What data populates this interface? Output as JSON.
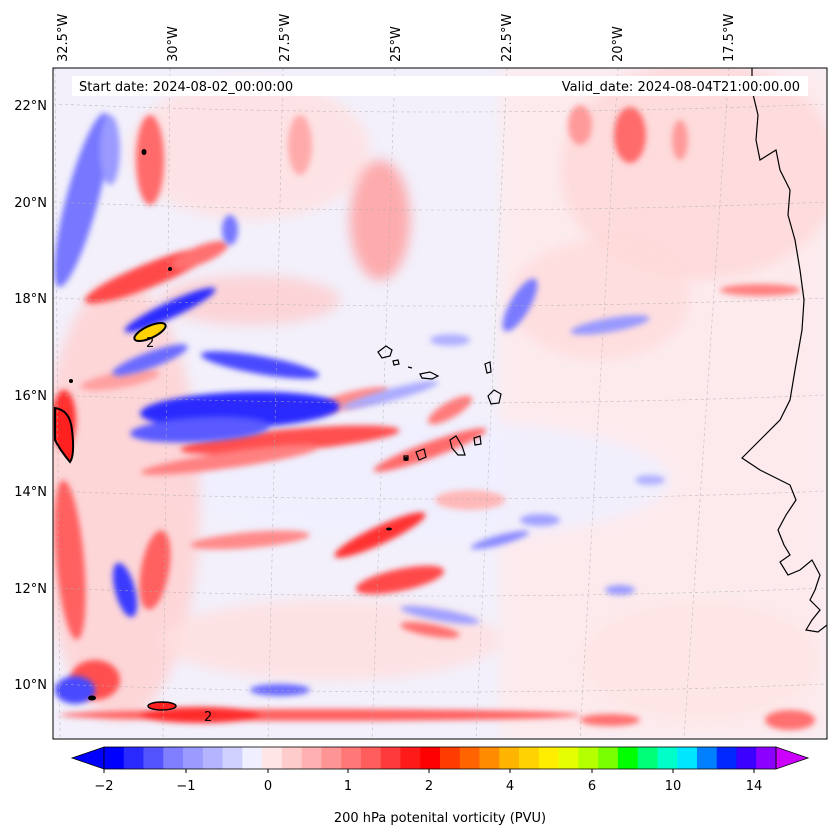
{
  "header": {
    "start_date": "Start date: 2024-08-02_00:00:00",
    "valid_date": "Valid_date: 2024-08-04T21:00:00.00"
  },
  "map": {
    "lon_labels": [
      "32.5°W",
      "30°W",
      "27.5°W",
      "25°W",
      "22.5°W",
      "20°W",
      "17.5°W"
    ],
    "lat_labels": [
      "22°N",
      "20°N",
      "18°N",
      "16°N",
      "14°N",
      "12°N",
      "10°N"
    ],
    "contour_labels": [
      "2",
      "2"
    ]
  },
  "colorbar": {
    "title": "200 hPa potenital vorticity (PVU)",
    "tick_labels": [
      "−2",
      "−1",
      "0",
      "1",
      "2",
      "4",
      "6",
      "10",
      "14"
    ],
    "colors": [
      "#0000ff",
      "#2a2aff",
      "#5454ff",
      "#7f7fff",
      "#9a9aff",
      "#b4b4ff",
      "#d0d0ff",
      "#efefff",
      "#ffe6e6",
      "#ffcccc",
      "#ffb0b0",
      "#ff9494",
      "#ff7878",
      "#ff5c5c",
      "#ff3a3a",
      "#ff1a1a",
      "#ff0000",
      "#ff3c00",
      "#ff6400",
      "#ff8c00",
      "#ffb400",
      "#ffd200",
      "#ffee00",
      "#e6ff00",
      "#b4ff00",
      "#78ff00",
      "#00ff00",
      "#00ff78",
      "#00ffc8",
      "#00e6ff",
      "#0080ff",
      "#0028ff",
      "#3c00ff",
      "#8c00ff"
    ],
    "min_color": "#0000ff",
    "max_color": "#cc00ff"
  }
}
